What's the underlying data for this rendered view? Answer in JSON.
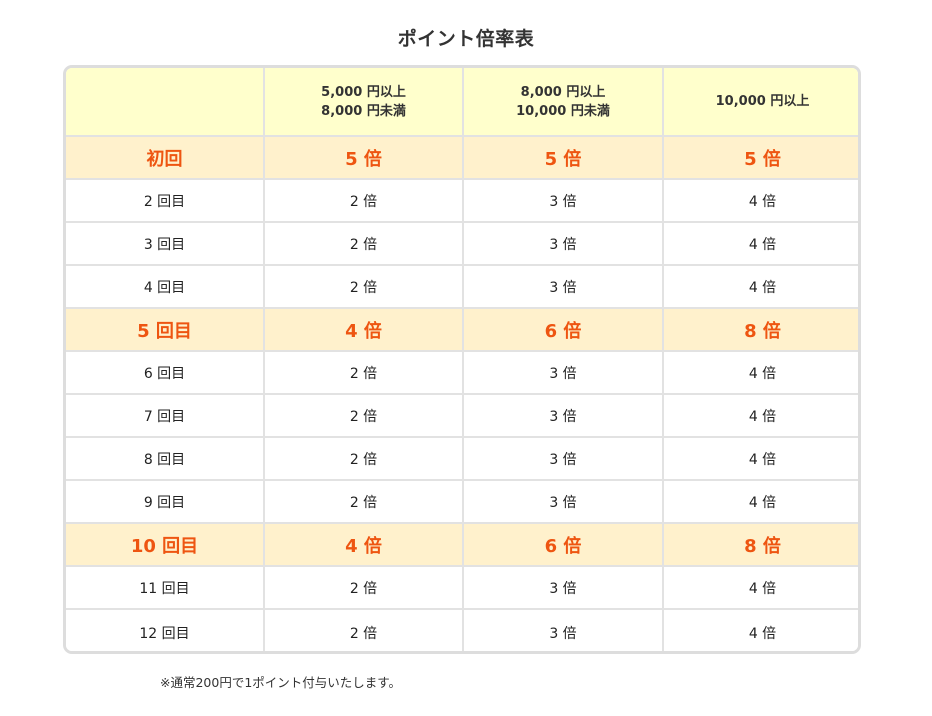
{
  "title": "ポイント倍率表",
  "table": {
    "headers": [
      {
        "line1": "",
        "line2": ""
      },
      {
        "line1": "5,000 円以上",
        "line2": "8,000 円未満"
      },
      {
        "line1": "8,000 円以上",
        "line2": "10,000 円未満"
      },
      {
        "line1": "10,000 円以上",
        "line2": ""
      }
    ],
    "rows": [
      {
        "label": "初回",
        "highlight": true,
        "values": [
          "5 倍",
          "5 倍",
          "5 倍"
        ]
      },
      {
        "label": "2 回目",
        "highlight": false,
        "values": [
          "2 倍",
          "3 倍",
          "4 倍"
        ]
      },
      {
        "label": "3 回目",
        "highlight": false,
        "values": [
          "2 倍",
          "3 倍",
          "4 倍"
        ]
      },
      {
        "label": "4 回目",
        "highlight": false,
        "values": [
          "2 倍",
          "3 倍",
          "4 倍"
        ]
      },
      {
        "label": "5 回目",
        "highlight": true,
        "values": [
          "4 倍",
          "6 倍",
          "8 倍"
        ]
      },
      {
        "label": "6 回目",
        "highlight": false,
        "values": [
          "2 倍",
          "3 倍",
          "4 倍"
        ]
      },
      {
        "label": "7 回目",
        "highlight": false,
        "values": [
          "2 倍",
          "3 倍",
          "4 倍"
        ]
      },
      {
        "label": "8 回目",
        "highlight": false,
        "values": [
          "2 倍",
          "3 倍",
          "4 倍"
        ]
      },
      {
        "label": "9 回目",
        "highlight": false,
        "values": [
          "2 倍",
          "3 倍",
          "4 倍"
        ]
      },
      {
        "label": "10 回目",
        "highlight": true,
        "values": [
          "4 倍",
          "6 倍",
          "8 倍"
        ]
      },
      {
        "label": "11 回目",
        "highlight": false,
        "values": [
          "2 倍",
          "3 倍",
          "4 倍"
        ]
      },
      {
        "label": "12 回目",
        "highlight": false,
        "values": [
          "2 倍",
          "3 倍",
          "4 倍"
        ]
      }
    ]
  },
  "note": "※通常200円で1ポイント付与いたします。",
  "colors": {
    "header_bg": "#ffffcc",
    "highlight_bg": "#fff1cc",
    "highlight_text": "#ee5511",
    "border": "#dddddd"
  }
}
